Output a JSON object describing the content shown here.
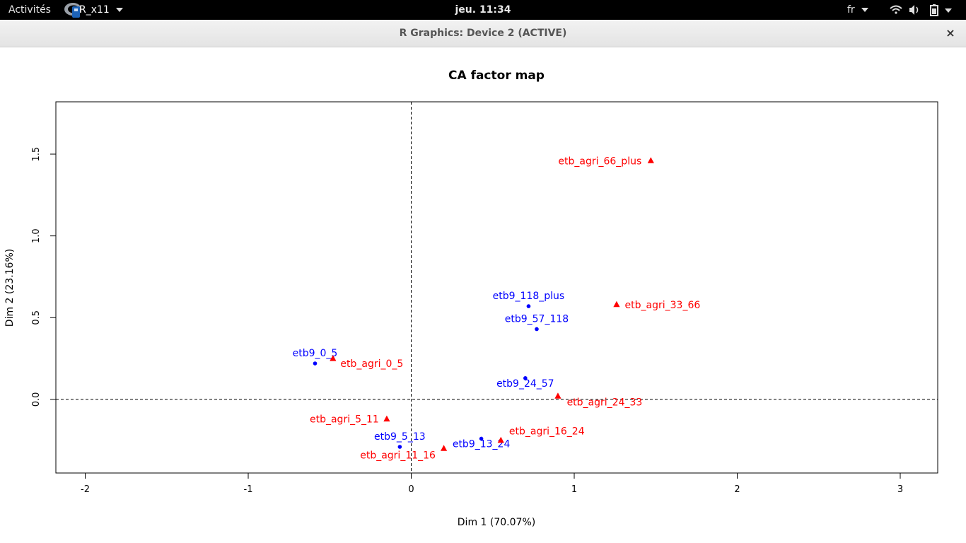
{
  "topbar": {
    "activities_label": "Activités",
    "app_label": "R_x11",
    "clock": "jeu. 11:34",
    "language": "fr",
    "icons": [
      "wifi-icon",
      "volume-icon",
      "battery-icon",
      "chevron-down-icon"
    ]
  },
  "window": {
    "title": "R Graphics: Device 2 (ACTIVE)",
    "close_label": "×"
  },
  "colors": {
    "rows": "#0000ff",
    "cols": "#ff0000",
    "axis": "#000000"
  },
  "chart_data": {
    "type": "scatter",
    "title": "CA factor map",
    "xlabel": "Dim 1 (70.07%)",
    "ylabel": "Dim 2 (23.16%)",
    "xlim": [
      -2.18,
      3.23
    ],
    "ylim": [
      -0.45,
      1.82
    ],
    "xticks": [
      -2,
      -1,
      0,
      1,
      2,
      3
    ],
    "yticks": [
      0.0,
      0.5,
      1.0,
      1.5
    ],
    "ytick_labels": [
      "0.0",
      "0.5",
      "1.0",
      "1.5"
    ],
    "reference_lines": {
      "x": 0,
      "y": 0,
      "style": "dashed"
    },
    "grid": false,
    "series": [
      {
        "marker": "circle",
        "color": "#0000ff",
        "points": [
          {
            "label": "etb9_0_5",
            "x": -0.59,
            "y": 0.22
          },
          {
            "label": "etb9_5_13",
            "x": -0.07,
            "y": -0.29
          },
          {
            "label": "etb9_13_24",
            "x": 0.43,
            "y": -0.24
          },
          {
            "label": "etb9_24_57",
            "x": 0.7,
            "y": 0.13
          },
          {
            "label": "etb9_57_118",
            "x": 0.77,
            "y": 0.43
          },
          {
            "label": "etb9_118_plus",
            "x": 0.72,
            "y": 0.57
          }
        ]
      },
      {
        "marker": "triangle",
        "color": "#ff0000",
        "points": [
          {
            "label": "etb_agri_0_5",
            "x": -0.48,
            "y": 0.25
          },
          {
            "label": "etb_agri_5_11",
            "x": -0.15,
            "y": -0.12
          },
          {
            "label": "etb_agri_11_16",
            "x": 0.2,
            "y": -0.3
          },
          {
            "label": "etb_agri_16_24",
            "x": 0.55,
            "y": -0.25
          },
          {
            "label": "etb_agri_24_33",
            "x": 0.9,
            "y": 0.02
          },
          {
            "label": "etb_agri_33_66",
            "x": 1.26,
            "y": 0.58
          },
          {
            "label": "etb_agri_66_plus",
            "x": 1.47,
            "y": 1.46
          }
        ]
      }
    ]
  }
}
